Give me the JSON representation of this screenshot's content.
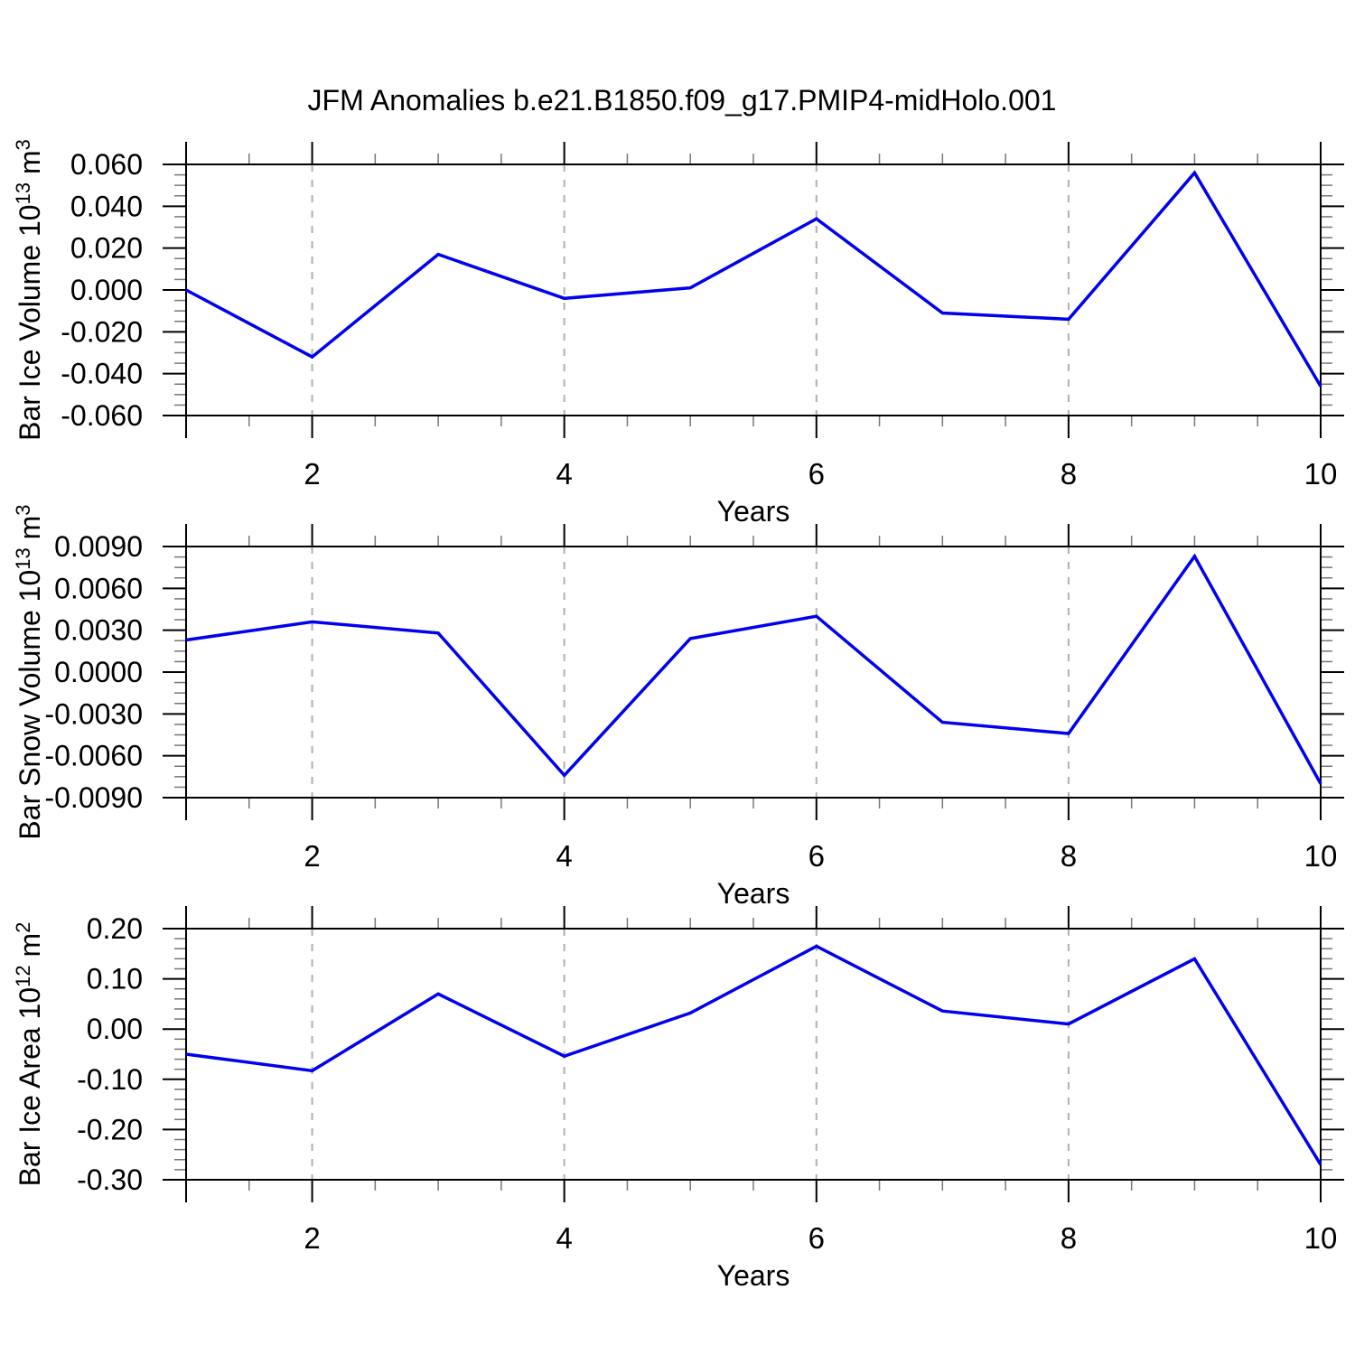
{
  "title": "JFM Anomalies b.e21.B1850.f09_g17.PMIP4-midHolo.001",
  "colors": {
    "line": "#0000EE",
    "grid": "#B0B0B0",
    "axis": "#000000",
    "minor_tick": "#777777",
    "text": "#000000"
  },
  "chart_data": [
    {
      "type": "line",
      "ylabel": "Bar Ice Volume 10^13 m^3",
      "ylabel_parts": [
        {
          "t": "Bar Ice Volume 10"
        },
        {
          "t": "13",
          "sup": true
        },
        {
          "t": " m"
        },
        {
          "t": "3",
          "sup": true
        }
      ],
      "xlabel": "Years",
      "x": [
        1,
        2,
        3,
        4,
        5,
        6,
        7,
        8,
        9,
        10
      ],
      "values": [
        0.0,
        -0.032,
        0.017,
        -0.004,
        0.001,
        0.034,
        -0.011,
        -0.014,
        0.056,
        -0.046
      ],
      "xlim": [
        1,
        10
      ],
      "ylim": [
        -0.06,
        0.06
      ],
      "ytick_values": [
        0.06,
        0.04,
        0.02,
        0.0,
        -0.02,
        -0.04,
        -0.06
      ],
      "ytick_labels": [
        "0.060",
        "0.040",
        "0.020",
        "0.000",
        "-0.020",
        "-0.040",
        "-0.060"
      ],
      "y_minor_step": 0.005,
      "xtick_values": [
        2,
        4,
        6,
        8,
        10
      ],
      "xtick_labels": [
        "2",
        "4",
        "6",
        "8",
        "10"
      ],
      "xtick_major_marks": [
        1,
        2,
        4,
        6,
        8,
        10
      ],
      "x_minor_step": 0.5,
      "grid_x": [
        2,
        4,
        6,
        8
      ],
      "grid_on": true,
      "legend": "none"
    },
    {
      "type": "line",
      "ylabel": "Bar Snow Volume 10^13 m^3",
      "ylabel_parts": [
        {
          "t": "Bar Snow Volume 10"
        },
        {
          "t": "13",
          "sup": true
        },
        {
          "t": " m"
        },
        {
          "t": "3",
          "sup": true
        }
      ],
      "xlabel": "Years",
      "x": [
        1,
        2,
        3,
        4,
        5,
        6,
        7,
        8,
        9,
        10
      ],
      "values": [
        0.0023,
        0.0036,
        0.0028,
        -0.0074,
        0.0024,
        0.004,
        -0.0036,
        -0.0044,
        0.0083,
        -0.008
      ],
      "xlim": [
        1,
        10
      ],
      "ylim": [
        -0.009,
        0.009
      ],
      "ytick_values": [
        0.009,
        0.006,
        0.003,
        0.0,
        -0.003,
        -0.006,
        -0.009
      ],
      "ytick_labels": [
        "0.0090",
        "0.0060",
        "0.0030",
        "0.0000",
        "-0.0030",
        "-0.0060",
        "-0.0090"
      ],
      "y_minor_step": 0.00075,
      "xtick_values": [
        2,
        4,
        6,
        8,
        10
      ],
      "xtick_labels": [
        "2",
        "4",
        "6",
        "8",
        "10"
      ],
      "xtick_major_marks": [
        1,
        2,
        4,
        6,
        8,
        10
      ],
      "x_minor_step": 0.5,
      "grid_x": [
        2,
        4,
        6,
        8
      ],
      "grid_on": true,
      "legend": "none"
    },
    {
      "type": "line",
      "ylabel": "Bar Ice Area 10^12 m^2",
      "ylabel_parts": [
        {
          "t": "Bar Ice Area 10"
        },
        {
          "t": "12",
          "sup": true
        },
        {
          "t": " m"
        },
        {
          "t": "2",
          "sup": true
        }
      ],
      "xlabel": "Years",
      "x": [
        1,
        2,
        3,
        4,
        5,
        6,
        7,
        8,
        9,
        10
      ],
      "values": [
        -0.05,
        -0.083,
        0.07,
        -0.054,
        0.032,
        0.165,
        0.036,
        0.01,
        0.14,
        -0.27
      ],
      "xlim": [
        1,
        10
      ],
      "ylim": [
        -0.3,
        0.2
      ],
      "ytick_values": [
        0.2,
        0.1,
        0.0,
        -0.1,
        -0.2,
        -0.3
      ],
      "ytick_labels": [
        "0.20",
        "0.10",
        "0.00",
        "-0.10",
        "-0.20",
        "-0.30"
      ],
      "y_minor_step": 0.02,
      "xtick_values": [
        2,
        4,
        6,
        8,
        10
      ],
      "xtick_labels": [
        "2",
        "4",
        "6",
        "8",
        "10"
      ],
      "xtick_major_marks": [
        1,
        2,
        4,
        6,
        8,
        10
      ],
      "x_minor_step": 0.5,
      "grid_x": [
        2,
        4,
        6,
        8
      ],
      "grid_on": true,
      "legend": "none"
    }
  ]
}
